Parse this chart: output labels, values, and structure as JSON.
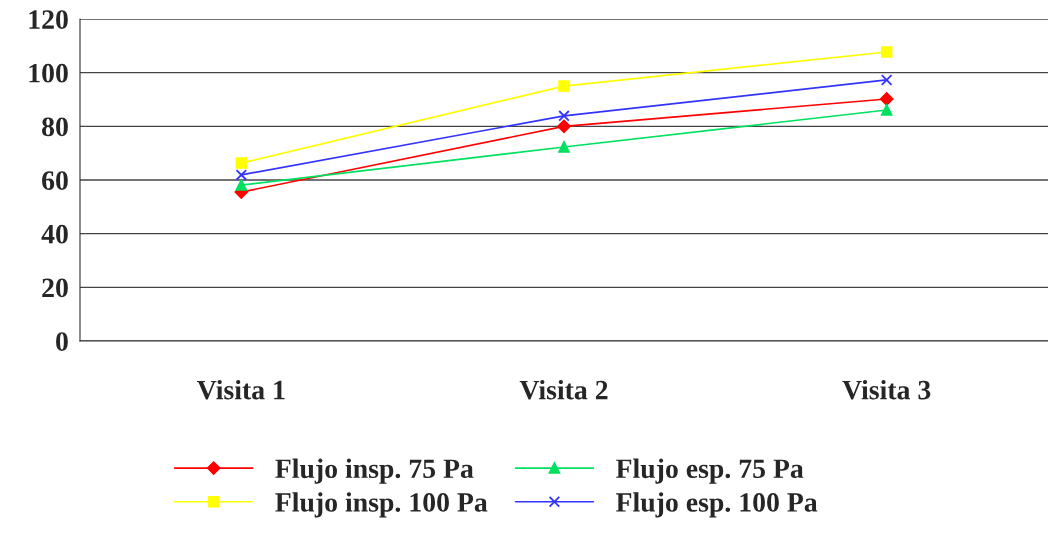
{
  "chart_data": {
    "type": "line",
    "categories": [
      "Visita 1",
      "Visita 2",
      "Visita 3"
    ],
    "ylim": [
      0,
      120
    ],
    "yticks": [
      0,
      20,
      40,
      60,
      80,
      100,
      120
    ],
    "grid": "y",
    "legend": "bottom",
    "series": [
      {
        "name": "Flujo insp. 75 Pa",
        "color": "#ff0000",
        "marker": "diamond",
        "values": [
          55.5,
          80,
          90.2
        ]
      },
      {
        "name": "Flujo insp. 100 Pa",
        "color": "#ffff00",
        "marker": "square",
        "values": [
          66.3,
          95,
          107.7
        ]
      },
      {
        "name": "Flujo esp. 75 Pa",
        "color": "#00e060",
        "marker": "triangle",
        "values": [
          58.1,
          72.3,
          86.1
        ]
      },
      {
        "name": "Flujo esp. 100 Pa",
        "color": "#3333ff",
        "marker": "cross",
        "values": [
          61.9,
          83.9,
          97.3
        ]
      }
    ]
  }
}
